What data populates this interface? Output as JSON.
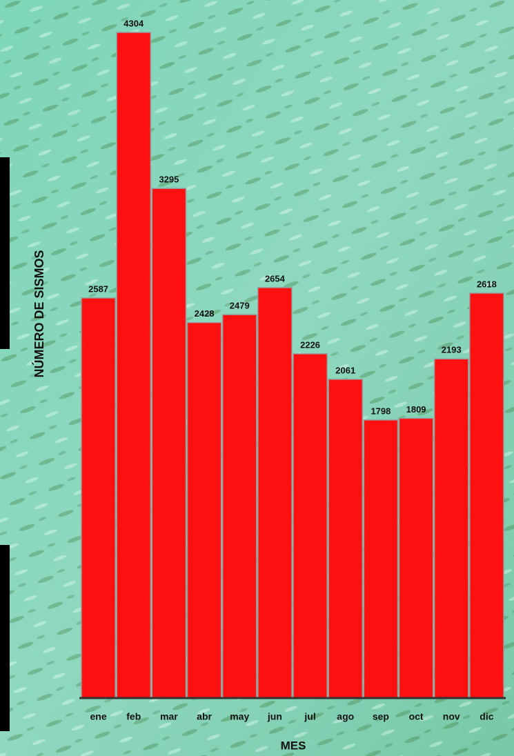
{
  "chart_data": {
    "type": "bar",
    "x_label": "MES",
    "y_label": "NÚMERO DE SISMOS",
    "categories": [
      "ene",
      "feb",
      "mar",
      "abr",
      "may",
      "jun",
      "jul",
      "ago",
      "sep",
      "oct",
      "nov",
      "dic"
    ],
    "values": [
      2587,
      4304,
      3295,
      2428,
      2479,
      2654,
      2226,
      2061,
      1798,
      1809,
      2193,
      2618
    ],
    "color": "#ff1010"
  }
}
